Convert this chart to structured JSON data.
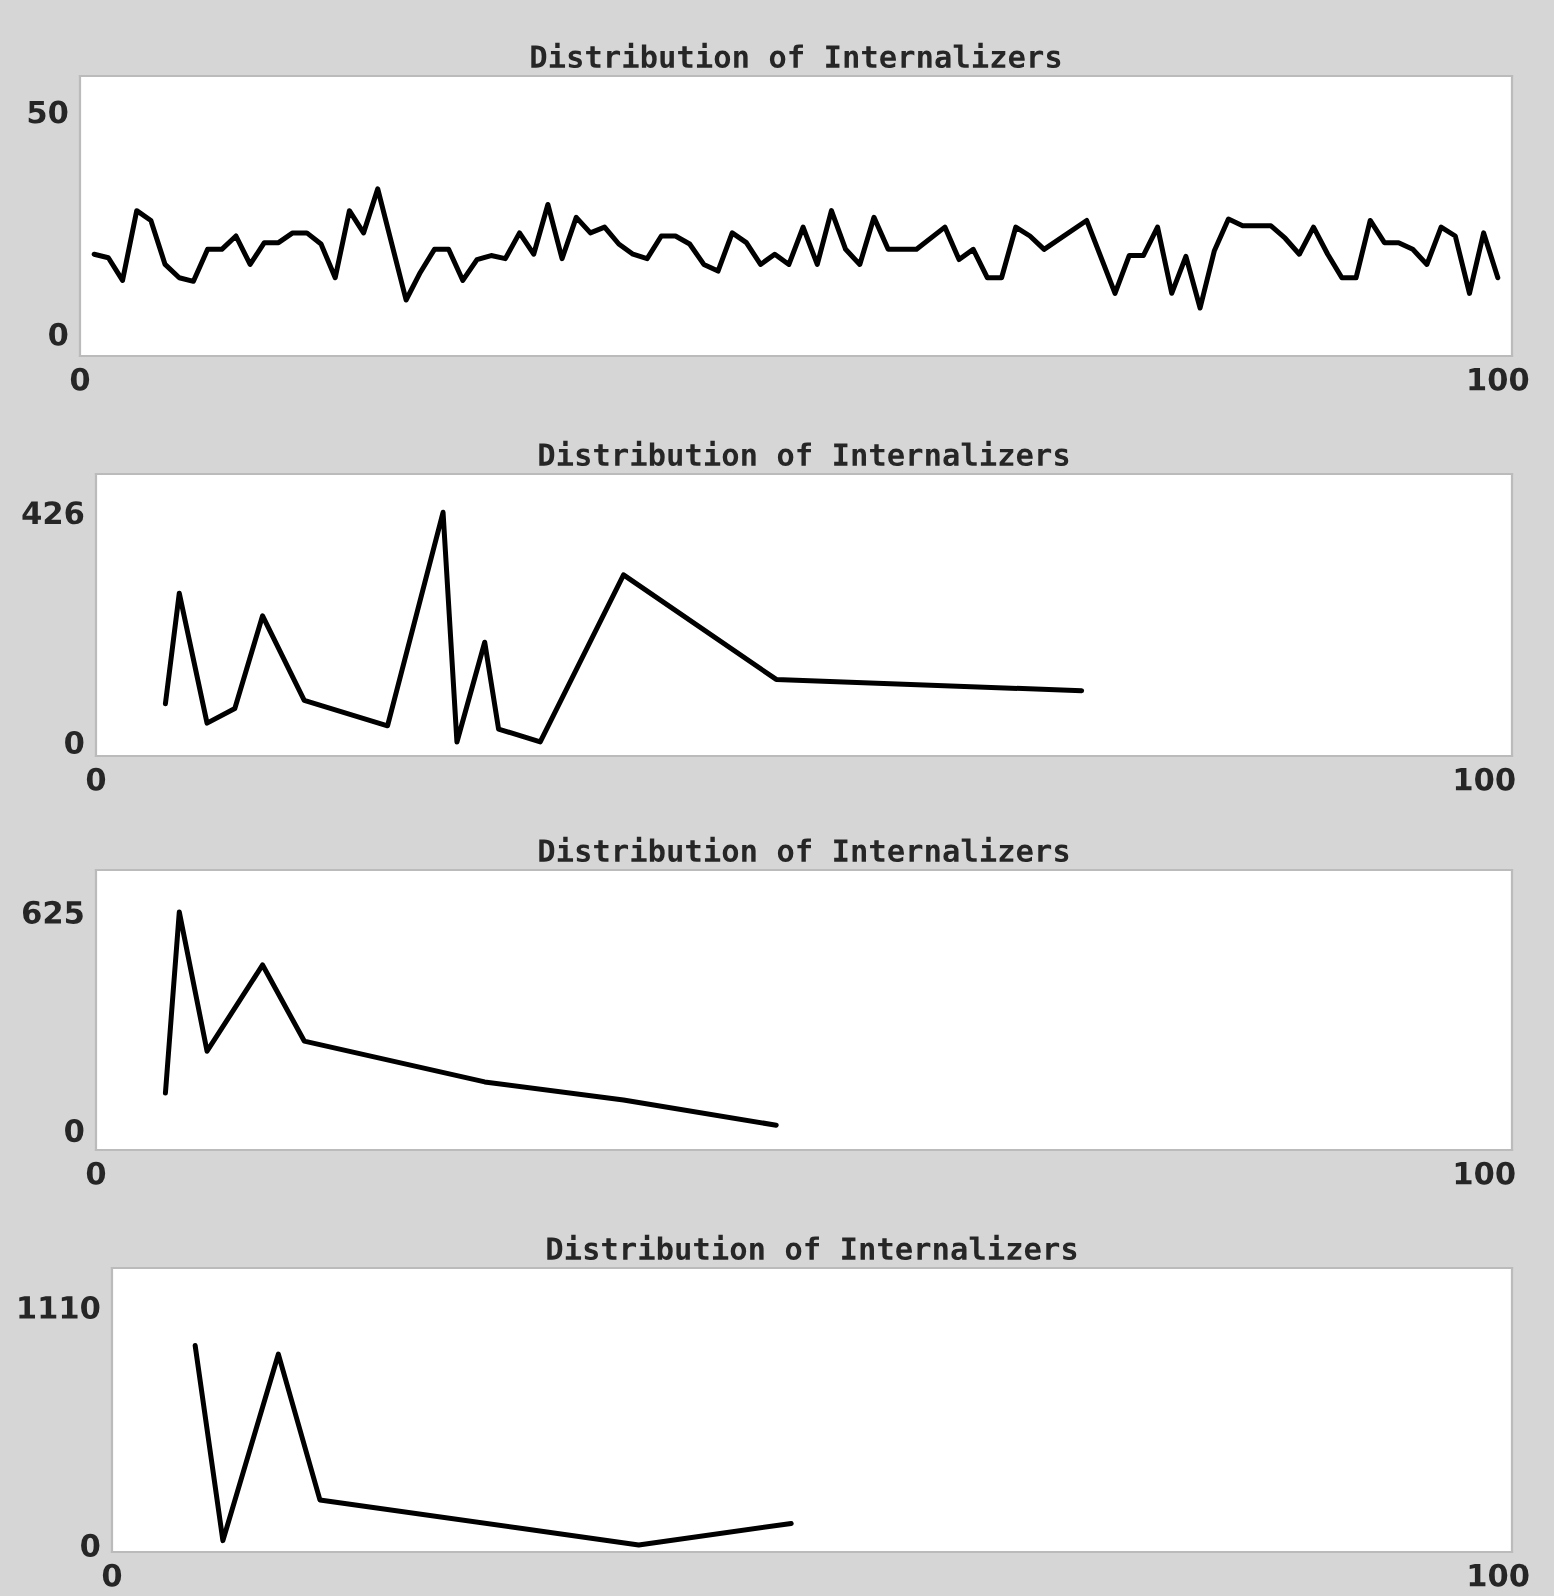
{
  "chart_data": [
    {
      "type": "line",
      "title": "Distribution of Internalizers",
      "color": "#000000",
      "grid": false,
      "xlim": [
        0,
        101
      ],
      "ylim": [
        -5,
        58
      ],
      "xticks": [
        0,
        100
      ],
      "yticks": [
        0,
        50
      ],
      "x": [
        1,
        2,
        3,
        4,
        5,
        6,
        7,
        8,
        9,
        10,
        11,
        12,
        13,
        14,
        15,
        16,
        17,
        18,
        19,
        20,
        21,
        23,
        24,
        25,
        26,
        27,
        28,
        29,
        30,
        31,
        32,
        33,
        34,
        35,
        36,
        37,
        38,
        39,
        40,
        41,
        42,
        43,
        44,
        45,
        46,
        47,
        48,
        49,
        50,
        51,
        52,
        53,
        54,
        55,
        56,
        57,
        59,
        61,
        62,
        63,
        64,
        65,
        66,
        67,
        68,
        71,
        73,
        74,
        75,
        76,
        77,
        78,
        79,
        80,
        81,
        82,
        84,
        85,
        86,
        87,
        88,
        89,
        90,
        91,
        92,
        93,
        94,
        95,
        96,
        97,
        98,
        99,
        100
      ],
      "values": [
        17.9,
        17.1,
        12,
        27.7,
        25.5,
        15.6,
        12.6,
        11.8,
        19,
        19,
        22,
        15.6,
        20.5,
        20.5,
        22.7,
        22.7,
        20.2,
        12.6,
        27.7,
        22.7,
        32.6,
        7.6,
        13.8,
        19,
        19,
        12,
        16.7,
        17.6,
        16.9,
        22.7,
        17.9,
        29.1,
        16.9,
        26.2,
        22.7,
        24,
        20.2,
        17.9,
        16.9,
        22,
        22,
        20.2,
        15.6,
        14.1,
        22.7,
        20.5,
        15.6,
        17.9,
        15.6,
        24,
        15.6,
        27.7,
        19,
        15.6,
        26.2,
        19,
        19,
        24,
        16.7,
        19,
        12.6,
        12.6,
        24,
        22,
        19,
        25.5,
        9.1,
        17.6,
        17.6,
        24,
        9.1,
        17.4,
        5.8,
        18.6,
        25.8,
        24.3,
        24.3,
        21.5,
        17.9,
        24,
        17.9,
        12.6,
        12.6,
        25.5,
        20.5,
        20.5,
        19,
        15.6,
        24,
        22,
        9.1,
        22.7,
        12.6
      ]
    },
    {
      "type": "line",
      "title": "Distribution of Internalizers",
      "color": "#000000",
      "grid": false,
      "xlim": [
        0,
        102
      ],
      "ylim": [
        -26,
        497
      ],
      "xticks": [
        0,
        100
      ],
      "yticks": [
        0,
        426
      ],
      "x": [
        5,
        6,
        8,
        10,
        12,
        15,
        21,
        25,
        26,
        28,
        29,
        32,
        38,
        49,
        71
      ],
      "values": [
        71,
        276,
        35,
        62,
        234,
        77,
        30,
        426,
        0,
        185,
        24,
        0,
        310,
        116,
        95
      ]
    },
    {
      "type": "line",
      "title": "Distribution of Internalizers",
      "color": "#000000",
      "grid": false,
      "xlim": [
        0,
        102
      ],
      "ylim": [
        -57,
        745
      ],
      "xticks": [
        0,
        100
      ],
      "yticks": [
        0,
        625
      ],
      "x": [
        5,
        6,
        8,
        12,
        15,
        28,
        38,
        49
      ],
      "values": [
        106,
        625,
        226,
        473,
        255,
        138,
        86,
        14
      ]
    },
    {
      "type": "line",
      "title": "Distribution of Internalizers",
      "color": "#000000",
      "grid": false,
      "xlim": [
        0,
        101
      ],
      "ylim": [
        -33,
        1292
      ],
      "xticks": [
        0,
        100
      ],
      "yticks": [
        0,
        1110
      ],
      "x": [
        6,
        8,
        12,
        15,
        38,
        49
      ],
      "values": [
        930,
        20,
        890,
        210,
        0,
        100
      ]
    }
  ]
}
